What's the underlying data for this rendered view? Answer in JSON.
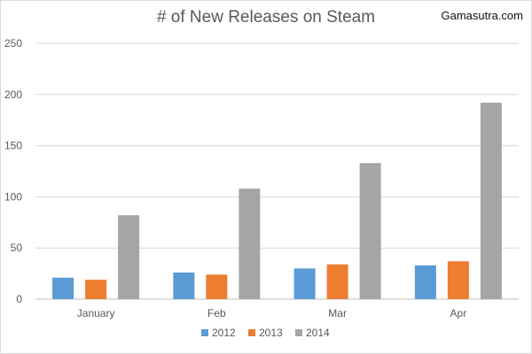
{
  "header": {
    "title": "# of New Releases on Steam",
    "watermark": "Gamasutra.com"
  },
  "chart_data": {
    "type": "bar",
    "title": "# of New Releases on Steam",
    "categories": [
      "January",
      "Feb",
      "Mar",
      "Apr"
    ],
    "series": [
      {
        "name": "2012",
        "color": "#5b9bd5",
        "values": [
          21,
          26,
          30,
          33
        ]
      },
      {
        "name": "2013",
        "color": "#ed7d31",
        "values": [
          19,
          24,
          34,
          37
        ]
      },
      {
        "name": "2014",
        "color": "#a5a5a5",
        "values": [
          82,
          108,
          133,
          192
        ]
      }
    ],
    "yticks": [
      0,
      50,
      100,
      150,
      200,
      250
    ],
    "ylim": [
      0,
      250
    ],
    "grid": true,
    "legend": "bottom"
  }
}
